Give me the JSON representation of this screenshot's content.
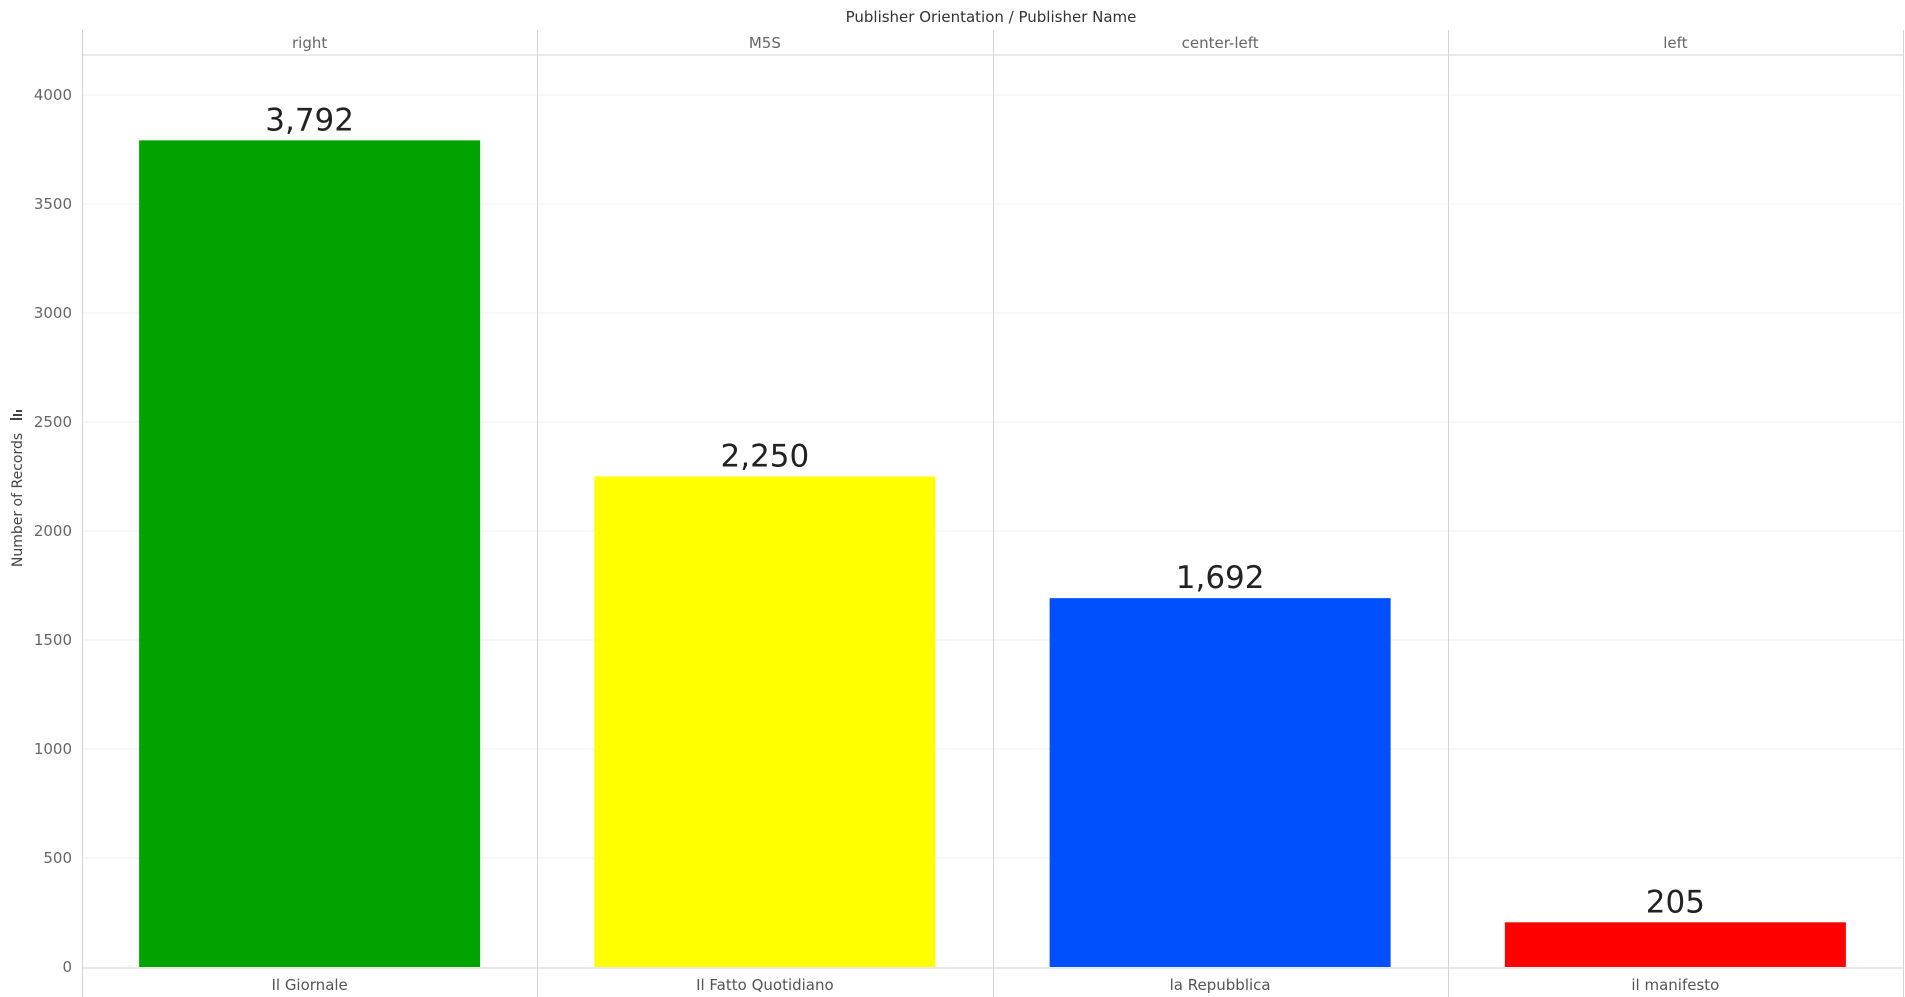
{
  "chart_data": {
    "type": "bar",
    "header_title": "Publisher Orientation / Publisher Name",
    "ylabel": "Number of Records",
    "ylim": [
      0,
      4200
    ],
    "yticks": [
      0,
      500,
      1000,
      1500,
      2000,
      2500,
      3000,
      3500,
      4000
    ],
    "grid": true,
    "orientations": [
      "right",
      "M5S",
      "center-left",
      "left"
    ],
    "categories": [
      "Il Giornale",
      "Il Fatto Quotidiano",
      "la Repubblica",
      "il manifesto"
    ],
    "values": [
      3792,
      2250,
      1692,
      205
    ],
    "value_labels": [
      "3,792",
      "2,250",
      "1,692",
      "205"
    ],
    "colors": [
      "#00a300",
      "#ffff00",
      "#0050ff",
      "#ff0000"
    ]
  }
}
